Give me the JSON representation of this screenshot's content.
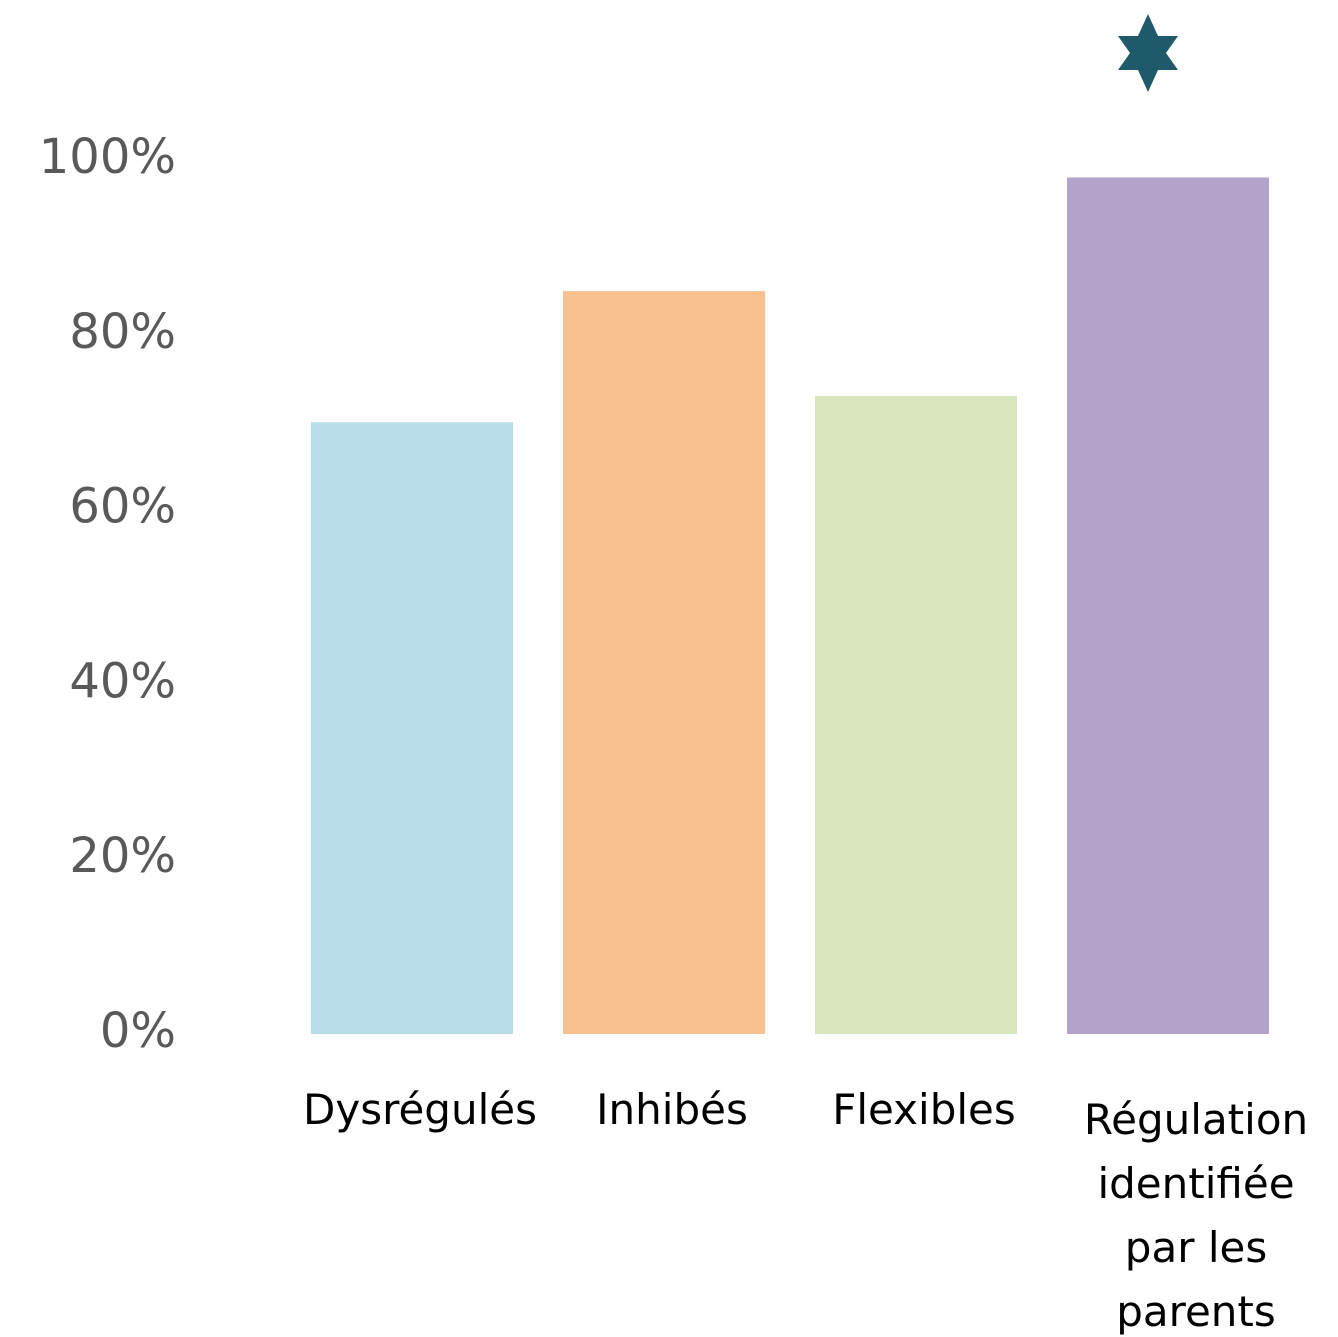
{
  "chart_data": {
    "type": "bar",
    "categories": [
      "Dysrégulés",
      "Inhibés",
      "Flexibles",
      "Régulation identifiée par les parents"
    ],
    "values": [
      70,
      85,
      73,
      98
    ],
    "colors": [
      "#b8dfe9",
      "#f9c090",
      "#d9e5bd",
      "#b3a2c9"
    ],
    "ylim": [
      0,
      100
    ],
    "yticks": [
      {
        "value": 0,
        "label": "0%"
      },
      {
        "value": 20,
        "label": "20%"
      },
      {
        "value": 40,
        "label": "40%"
      },
      {
        "value": 60,
        "label": "60%"
      },
      {
        "value": 80,
        "label": "80%"
      },
      {
        "value": 100,
        "label": "100%"
      }
    ],
    "grid": false
  }
}
